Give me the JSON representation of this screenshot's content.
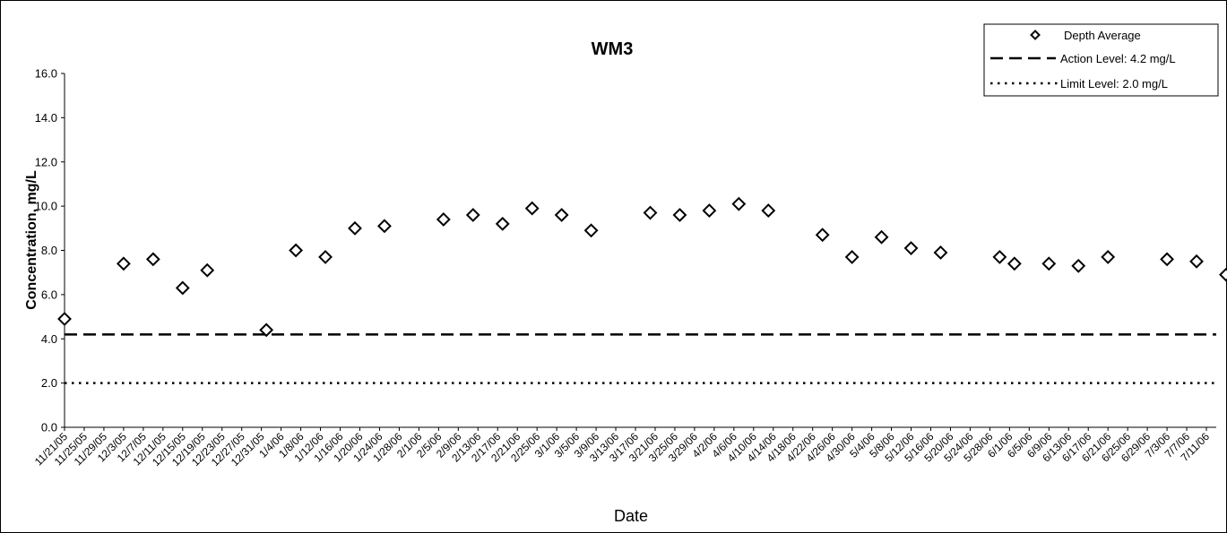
{
  "chart_data": {
    "type": "scatter",
    "title": "WM3",
    "xlabel": "Date",
    "ylabel": "Concentration, mg/L",
    "ylim": [
      0,
      16
    ],
    "yticks": [
      "0.0",
      "2.0",
      "4.0",
      "6.0",
      "8.0",
      "10.0",
      "12.0",
      "14.0",
      "16.0"
    ],
    "xlim": [
      "11/21/05",
      "7/13/06"
    ],
    "xticks": [
      "11/21/05",
      "11/25/05",
      "11/29/05",
      "12/3/05",
      "12/7/05",
      "12/11/05",
      "12/15/05",
      "12/19/05",
      "12/23/05",
      "12/27/05",
      "12/31/05",
      "1/4/06",
      "1/8/06",
      "1/12/06",
      "1/16/06",
      "1/20/06",
      "1/24/06",
      "1/28/06",
      "2/1/06",
      "2/5/06",
      "2/9/06",
      "2/13/06",
      "2/17/06",
      "2/21/06",
      "2/25/06",
      "3/1/06",
      "3/5/06",
      "3/9/06",
      "3/13/06",
      "3/17/06",
      "3/21/06",
      "3/25/06",
      "3/29/06",
      "4/2/06",
      "4/6/06",
      "4/10/06",
      "4/14/06",
      "4/18/06",
      "4/22/06",
      "4/26/06",
      "4/30/06",
      "5/4/06",
      "5/8/06",
      "5/12/06",
      "5/16/06",
      "5/20/06",
      "5/24/06",
      "5/28/06",
      "6/1/06",
      "6/5/06",
      "6/9/06",
      "6/13/06",
      "6/17/06",
      "6/21/06",
      "6/25/06",
      "6/29/06",
      "7/3/06",
      "7/7/06",
      "7/11/06"
    ],
    "grid": false,
    "legend_position": "top-right",
    "series": [
      {
        "name": "Depth Average",
        "marker": "diamond",
        "points": [
          {
            "x": "11/21/05",
            "y": 4.9
          },
          {
            "x": "12/3/05",
            "y": 7.4
          },
          {
            "x": "12/9/05",
            "y": 7.6
          },
          {
            "x": "12/15/05",
            "y": 6.3
          },
          {
            "x": "12/20/05",
            "y": 7.1
          },
          {
            "x": "1/1/06",
            "y": 4.4
          },
          {
            "x": "1/7/06",
            "y": 8.0
          },
          {
            "x": "1/13/06",
            "y": 7.7
          },
          {
            "x": "1/19/06",
            "y": 9.0
          },
          {
            "x": "1/25/06",
            "y": 9.1
          },
          {
            "x": "2/6/06",
            "y": 9.4
          },
          {
            "x": "2/12/06",
            "y": 9.6
          },
          {
            "x": "2/18/06",
            "y": 9.2
          },
          {
            "x": "2/24/06",
            "y": 9.9
          },
          {
            "x": "3/2/06",
            "y": 9.6
          },
          {
            "x": "3/8/06",
            "y": 8.9
          },
          {
            "x": "3/20/06",
            "y": 9.7
          },
          {
            "x": "3/26/06",
            "y": 9.6
          },
          {
            "x": "4/1/06",
            "y": 9.8
          },
          {
            "x": "4/7/06",
            "y": 10.1
          },
          {
            "x": "4/13/06",
            "y": 9.8
          },
          {
            "x": "4/24/06",
            "y": 8.7
          },
          {
            "x": "4/30/06",
            "y": 7.7
          },
          {
            "x": "5/6/06",
            "y": 8.6
          },
          {
            "x": "5/12/06",
            "y": 8.1
          },
          {
            "x": "5/18/06",
            "y": 7.9
          },
          {
            "x": "5/30/06",
            "y": 7.7
          },
          {
            "x": "6/2/06",
            "y": 7.4
          },
          {
            "x": "6/9/06",
            "y": 7.4
          },
          {
            "x": "6/15/06",
            "y": 7.3
          },
          {
            "x": "6/21/06",
            "y": 7.7
          },
          {
            "x": "7/3/06",
            "y": 7.6
          },
          {
            "x": "7/9/06",
            "y": 7.5
          },
          {
            "x": "7/15/06",
            "y": 6.9
          }
        ]
      },
      {
        "name": "Action Level: 4.2 mg/L",
        "type": "hline",
        "y": 4.2,
        "style": "dashed"
      },
      {
        "name": "Limit Level: 2.0 mg/L",
        "type": "hline",
        "y": 2.0,
        "style": "dotted"
      }
    ]
  }
}
